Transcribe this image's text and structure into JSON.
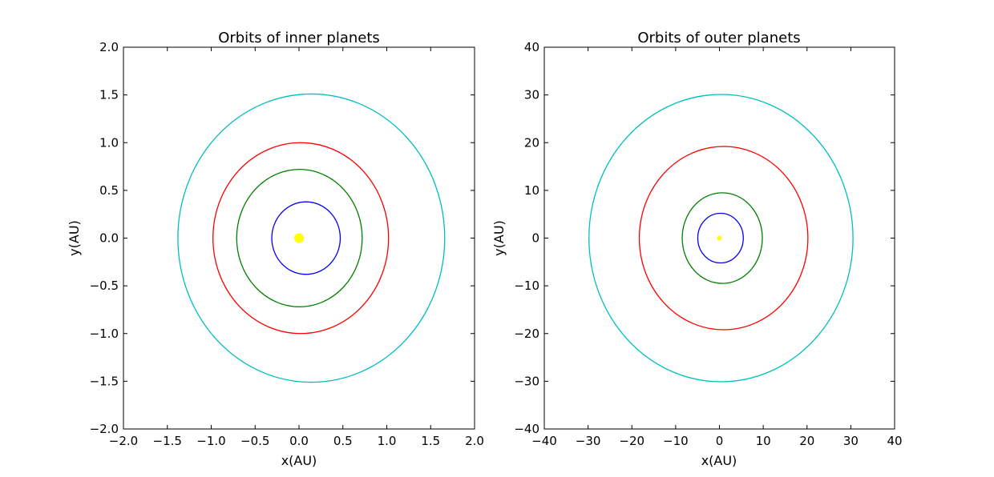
{
  "chart_data": [
    {
      "type": "line",
      "title": "Orbits of inner planets",
      "xlabel": "x(AU)",
      "ylabel": "y(AU)",
      "xlim": [
        -2.0,
        2.0
      ],
      "ylim": [
        -2.0,
        2.0
      ],
      "xticks": [
        -2.0,
        -1.5,
        -1.0,
        -0.5,
        0.0,
        0.5,
        1.0,
        1.5,
        2.0
      ],
      "yticks": [
        -2.0,
        -1.5,
        -1.0,
        -0.5,
        0.0,
        0.5,
        1.0,
        1.5,
        2.0
      ],
      "xtick_labels": [
        "−2.0",
        "−1.5",
        "−1.0",
        "−0.5",
        "0.0",
        "0.5",
        "1.0",
        "1.5",
        "2.0"
      ],
      "ytick_labels": [
        "−2.0",
        "−1.5",
        "−1.0",
        "−0.5",
        "0.0",
        "0.5",
        "1.0",
        "1.5",
        "2.0"
      ],
      "grid": false,
      "sun": {
        "x": 0.0,
        "y": 0.0,
        "color": "#ffff00",
        "marker_size": 12
      },
      "series": [
        {
          "color": "#0000ff",
          "center_x": 0.08,
          "center_y": 0.0,
          "x_min": -0.31,
          "x_max": 0.47,
          "y_max": 0.38
        },
        {
          "color": "#008000",
          "center_x": 0.0,
          "center_y": 0.0,
          "x_min": -0.71,
          "x_max": 0.72,
          "y_max": 0.72
        },
        {
          "color": "#ff0000",
          "center_x": 0.02,
          "center_y": 0.0,
          "x_min": -0.98,
          "x_max": 1.02,
          "y_max": 1.0
        },
        {
          "color": "#00bfbf",
          "center_x": 0.14,
          "center_y": 0.0,
          "x_min": -1.38,
          "x_max": 1.66,
          "y_max": 1.51
        }
      ]
    },
    {
      "type": "line",
      "title": "Orbits of outer planets",
      "xlabel": "x(AU)",
      "ylabel": "y(AU)",
      "xlim": [
        -40,
        40
      ],
      "ylim": [
        -40,
        40
      ],
      "xticks": [
        -40,
        -30,
        -20,
        -10,
        0,
        10,
        20,
        30,
        40
      ],
      "yticks": [
        -40,
        -30,
        -20,
        -10,
        0,
        10,
        20,
        30,
        40
      ],
      "xtick_labels": [
        "−40",
        "−30",
        "−20",
        "−10",
        "0",
        "10",
        "20",
        "30",
        "40"
      ],
      "ytick_labels": [
        "−40",
        "−30",
        "−20",
        "−10",
        "0",
        "10",
        "20",
        "30",
        "40"
      ],
      "grid": false,
      "sun": {
        "x": 0.0,
        "y": 0.0,
        "color": "#ffff00",
        "marker_size": 6
      },
      "series": [
        {
          "color": "#0000ff",
          "center_x": 0.25,
          "center_y": 0.0,
          "x_min": -4.95,
          "x_max": 5.45,
          "y_max": 5.2
        },
        {
          "color": "#008000",
          "center_x": 0.5,
          "center_y": 0.0,
          "x_min": -8.5,
          "x_max": 9.8,
          "y_max": 9.5
        },
        {
          "color": "#ff0000",
          "center_x": 1.0,
          "center_y": 0.0,
          "x_min": -18.3,
          "x_max": 20.2,
          "y_max": 19.2
        },
        {
          "color": "#00bfbf",
          "center_x": 0.4,
          "center_y": 0.0,
          "x_min": -29.8,
          "x_max": 30.5,
          "y_max": 30.1
        }
      ]
    }
  ]
}
